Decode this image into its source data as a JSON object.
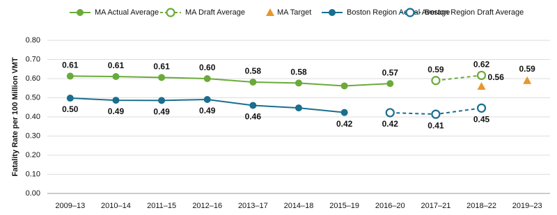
{
  "chart_data": {
    "type": "line",
    "y_label": "Fatality Rate per 100 Million VMT",
    "categories": [
      "2009–13",
      "2010–14",
      "2011–15",
      "2012–16",
      "2013–17",
      "2014–18",
      "2015–19",
      "2016–20",
      "2017–21",
      "2018–22",
      "2019–23"
    ],
    "ylim": [
      0,
      0.8
    ],
    "yticks": [
      {
        "value": 0,
        "label": "0.00"
      },
      {
        "value": 0.1,
        "label": "0.10"
      },
      {
        "value": 0.2,
        "label": "0.20"
      },
      {
        "value": 0.3,
        "label": "0.30"
      },
      {
        "value": 0.4,
        "label": "0.40"
      },
      {
        "value": 0.5,
        "label": "0.50"
      },
      {
        "value": 0.6,
        "label": "0.60"
      },
      {
        "value": 0.7,
        "label": "0.70"
      },
      {
        "value": 0.8,
        "label": "0.80"
      }
    ],
    "grid": true,
    "legend": "top",
    "series": [
      {
        "name": "MA Actual Average",
        "color": "#6aaa3a",
        "marker": "filled",
        "dashed": false,
        "label_side": "above",
        "values": [
          0.613,
          0.611,
          0.606,
          0.6,
          0.582,
          0.577,
          0.562,
          0.574,
          null,
          null,
          null
        ],
        "value_labels": [
          "0.61",
          "0.61",
          "0.61",
          "0.60",
          "0.58",
          "0.58",
          null,
          "0.57",
          null,
          null,
          null
        ]
      },
      {
        "name": "MA Draft Average",
        "color": "#6aaa3a",
        "marker": "open",
        "dashed": true,
        "label_side": "above",
        "values": [
          null,
          null,
          null,
          null,
          null,
          null,
          null,
          null,
          0.59,
          0.617,
          null
        ],
        "value_labels": [
          null,
          null,
          null,
          null,
          null,
          null,
          null,
          null,
          "0.59",
          "0.62",
          null
        ]
      },
      {
        "name": "MA Target",
        "color": "#e8962a",
        "marker": "triangle",
        "dashed": false,
        "label_side": "right",
        "values": [
          null,
          null,
          null,
          null,
          null,
          null,
          null,
          null,
          null,
          0.56,
          0.59
        ],
        "value_labels": [
          null,
          null,
          null,
          null,
          null,
          null,
          null,
          null,
          null,
          "0.56",
          "0.59"
        ]
      },
      {
        "name": "Boston Region Actual Average",
        "color": "#1a6e8e",
        "marker": "filled",
        "dashed": false,
        "label_side": "below",
        "values": [
          0.498,
          0.487,
          0.486,
          0.491,
          0.46,
          0.447,
          0.423,
          null,
          null,
          null,
          null
        ],
        "value_labels": [
          "0.50",
          "0.49",
          "0.49",
          "0.49",
          "0.46",
          null,
          "0.42",
          null,
          null,
          null,
          null
        ]
      },
      {
        "name": "Boston Region Draft Average",
        "color": "#1a6e8e",
        "marker": "open",
        "dashed": true,
        "label_side": "below",
        "values": [
          null,
          null,
          null,
          null,
          null,
          null,
          null,
          0.422,
          0.414,
          0.446,
          null
        ],
        "value_labels": [
          null,
          null,
          null,
          null,
          null,
          null,
          null,
          "0.42",
          "0.41",
          "0.45",
          null
        ]
      }
    ]
  }
}
